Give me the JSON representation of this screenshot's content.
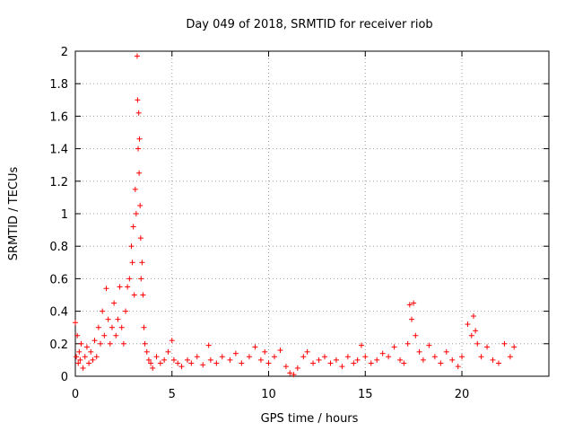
{
  "chart_data": {
    "type": "scatter",
    "title": "Day 049 of 2018, SRMTID for receiver riob",
    "xlabel": "GPS time / hours",
    "ylabel": "SRMTID / TECUs",
    "xlim": [
      0,
      24.5
    ],
    "ylim": [
      0,
      2
    ],
    "xticks": [
      0,
      5,
      10,
      15,
      20
    ],
    "xtick_labels": [
      "0",
      "5",
      "10",
      "15",
      "20"
    ],
    "yticks": [
      0,
      0.2,
      0.4,
      0.6,
      0.8,
      1,
      1.2,
      1.4,
      1.6,
      1.8,
      2
    ],
    "ytick_labels": [
      "0",
      "0.2",
      "0.4",
      "0.6",
      "0.8",
      "1",
      "1.2",
      "1.4",
      "1.6",
      "1.8",
      "2"
    ],
    "grid": true,
    "marker": "plus",
    "color": "#ff0000",
    "series": [
      {
        "name": "SRMTID",
        "x": [
          0.0,
          0.05,
          0.1,
          0.15,
          0.2,
          0.25,
          0.3,
          0.4,
          0.5,
          0.6,
          0.7,
          0.8,
          0.9,
          1.0,
          1.1,
          1.2,
          1.3,
          1.4,
          1.5,
          1.6,
          1.7,
          1.8,
          1.9,
          2.0,
          2.1,
          2.2,
          2.3,
          2.4,
          2.5,
          2.6,
          2.7,
          2.8,
          2.9,
          2.95,
          3.0,
          3.05,
          3.1,
          3.15,
          3.2,
          3.22,
          3.25,
          3.28,
          3.3,
          3.32,
          3.35,
          3.38,
          3.4,
          3.45,
          3.5,
          3.55,
          3.6,
          3.7,
          3.8,
          3.9,
          4.0,
          4.2,
          4.4,
          4.6,
          4.8,
          5.0,
          5.1,
          5.3,
          5.5,
          5.8,
          6.0,
          6.3,
          6.6,
          6.9,
          7.0,
          7.3,
          7.6,
          8.0,
          8.3,
          8.6,
          9.0,
          9.3,
          9.6,
          9.8,
          10.0,
          10.3,
          10.6,
          10.9,
          11.1,
          11.3,
          11.5,
          11.8,
          12.0,
          12.3,
          12.6,
          12.9,
          13.2,
          13.5,
          13.8,
          14.1,
          14.4,
          14.6,
          14.8,
          15.0,
          15.3,
          15.6,
          15.9,
          16.2,
          16.5,
          16.8,
          17.0,
          17.2,
          17.3,
          17.4,
          17.5,
          17.6,
          17.8,
          18.0,
          18.3,
          18.6,
          18.9,
          19.2,
          19.5,
          19.8,
          20.0,
          20.3,
          20.5,
          20.6,
          20.7,
          20.8,
          21.0,
          21.3,
          21.6,
          21.9,
          22.2,
          22.5,
          22.7
        ],
        "y": [
          0.33,
          0.12,
          0.25,
          0.08,
          0.15,
          0.1,
          0.2,
          0.05,
          0.12,
          0.18,
          0.08,
          0.15,
          0.1,
          0.22,
          0.12,
          0.3,
          0.2,
          0.4,
          0.25,
          0.54,
          0.35,
          0.2,
          0.3,
          0.45,
          0.25,
          0.35,
          0.55,
          0.3,
          0.2,
          0.4,
          0.55,
          0.6,
          0.8,
          0.7,
          0.92,
          0.5,
          1.15,
          1.0,
          1.97,
          1.7,
          1.4,
          1.62,
          1.25,
          1.46,
          1.05,
          0.85,
          0.6,
          0.7,
          0.5,
          0.3,
          0.2,
          0.15,
          0.1,
          0.08,
          0.05,
          0.12,
          0.08,
          0.1,
          0.15,
          0.22,
          0.1,
          0.08,
          0.06,
          0.1,
          0.08,
          0.12,
          0.07,
          0.19,
          0.1,
          0.08,
          0.12,
          0.1,
          0.14,
          0.08,
          0.12,
          0.18,
          0.1,
          0.15,
          0.08,
          0.12,
          0.16,
          0.06,
          0.02,
          0.01,
          0.05,
          0.12,
          0.15,
          0.08,
          0.1,
          0.12,
          0.08,
          0.1,
          0.06,
          0.12,
          0.08,
          0.1,
          0.19,
          0.12,
          0.08,
          0.1,
          0.14,
          0.12,
          0.18,
          0.1,
          0.08,
          0.2,
          0.44,
          0.35,
          0.45,
          0.25,
          0.15,
          0.1,
          0.19,
          0.12,
          0.08,
          0.15,
          0.1,
          0.06,
          0.12,
          0.32,
          0.25,
          0.37,
          0.28,
          0.2,
          0.12,
          0.18,
          0.1,
          0.08,
          0.2,
          0.12,
          0.18
        ]
      }
    ]
  }
}
